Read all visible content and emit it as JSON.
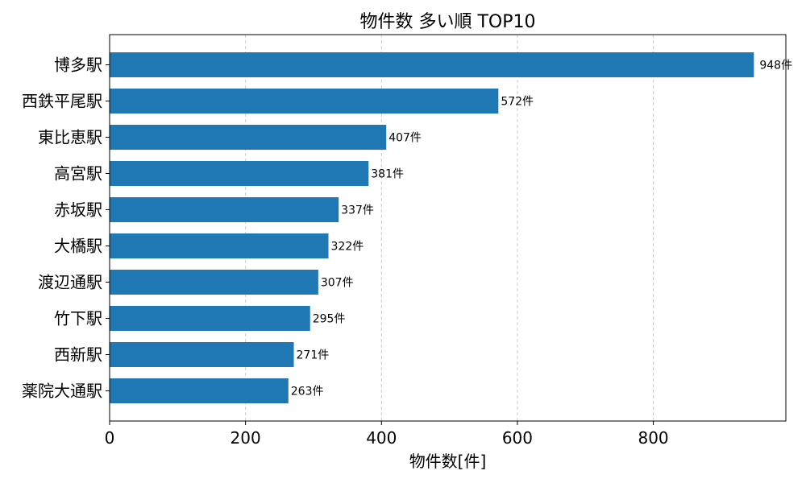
{
  "chart_data": {
    "type": "bar",
    "orientation": "horizontal",
    "title": "物件数 多い順 TOP10",
    "xlabel": "物件数[件]",
    "ylabel": "",
    "categories": [
      "博多駅",
      "西鉄平尾駅",
      "東比恵駅",
      "高宮駅",
      "赤坂駅",
      "大橋駅",
      "渡辺通駅",
      "竹下駅",
      "西新駅",
      "薬院大通駅"
    ],
    "values": [
      948,
      572,
      407,
      381,
      337,
      322,
      307,
      295,
      271,
      263
    ],
    "value_labels": [
      "948件",
      "572件",
      "407件",
      "381件",
      "337件",
      "322件",
      "307件",
      "295件",
      "271件",
      "263件"
    ],
    "xticks": [
      0,
      200,
      400,
      600,
      800
    ],
    "xtick_labels": [
      "0",
      "200",
      "400",
      "600",
      "800"
    ],
    "xlim": [
      0,
      995
    ],
    "grid": "x-dashed",
    "bar_color": "#1f77b4",
    "grid_color": "#cccccc"
  }
}
